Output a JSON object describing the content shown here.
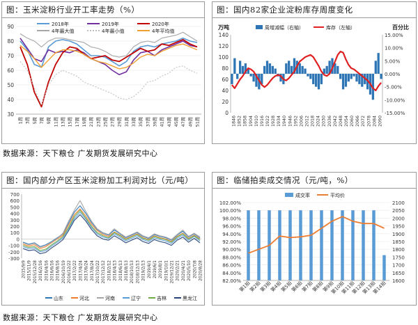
{
  "panels": {
    "p1": {
      "title": "图：玉米淀粉行业开工率走势（%）"
    },
    "p2": {
      "title": "图：国内82家企业淀粉库存周度变化"
    },
    "p3": {
      "title": "图：国内部分产区玉米淀粉加工利润对比（元/吨）"
    },
    "p4": {
      "title": "图：临储拍卖成交情况（元/吨，%）"
    }
  },
  "sources": {
    "row1": "数据来源：天下粮仓  广发期货发展研究中心",
    "row2": "数据来源：天下粮仓  广发期货发展研究中心"
  },
  "chart_data": [
    {
      "id": "p1",
      "type": "line",
      "yticks": [
        "90",
        "80",
        "70",
        "60",
        "50",
        "40",
        "30"
      ],
      "ylim": [
        30,
        90
      ],
      "x": [
        1,
        3,
        5,
        7,
        9,
        11,
        13,
        15,
        17,
        19,
        21,
        23,
        25,
        27,
        29,
        31,
        33,
        35,
        37,
        39,
        41,
        43,
        45,
        47,
        49,
        51
      ],
      "xtick_labels": [
        "1周",
        "3周",
        "5周",
        "7周",
        "9周",
        "11周",
        "13周",
        "15周",
        "17周",
        "19周",
        "21周",
        "23周",
        "25周",
        "27周",
        "29周",
        "31周",
        "33周",
        "35周",
        "37周",
        "39周",
        "41周",
        "43周",
        "45周",
        "47周",
        "49周",
        "51周"
      ],
      "series": [
        {
          "name": "2018年",
          "color": "#5b9bd5",
          "dash": "",
          "width": 1.6,
          "values": [
            80,
            74,
            64,
            62,
            76,
            80,
            81,
            80,
            78,
            74,
            70,
            70,
            69,
            66,
            63,
            66,
            73,
            76,
            77,
            76,
            78,
            79,
            80,
            82,
            80,
            79
          ]
        },
        {
          "name": "2019年",
          "color": "#7030a0",
          "dash": "",
          "width": 1.6,
          "values": [
            82,
            75,
            68,
            66,
            74,
            72,
            73,
            72,
            74,
            72,
            68,
            66,
            64,
            60,
            57,
            59,
            67,
            72,
            73,
            70,
            74,
            76,
            78,
            80,
            77,
            76
          ]
        },
        {
          "name": "2020年",
          "color": "#c00000",
          "dash": "",
          "width": 1.8,
          "values": [
            76,
            64,
            45,
            35,
            52,
            64,
            72,
            76,
            75,
            71,
            68,
            69,
            70,
            67,
            66,
            69,
            72,
            75,
            73,
            74,
            78,
            77,
            79,
            81,
            78,
            76
          ]
        },
        {
          "name": "4年最大值",
          "color": "#a6a6a6",
          "dash": "",
          "width": 1.1,
          "values": [
            85,
            82,
            80,
            76,
            80,
            82,
            82,
            81,
            80,
            79,
            76,
            75,
            73,
            70,
            69,
            70,
            76,
            79,
            80,
            79,
            82,
            83,
            84,
            86,
            83,
            80
          ]
        },
        {
          "name": "4年最小值",
          "color": "#c0c0c0",
          "dash": "2,2",
          "width": 1.1,
          "values": [
            66,
            60,
            48,
            36,
            50,
            57,
            60,
            58,
            56,
            52,
            50,
            48,
            46,
            44,
            41,
            40,
            42,
            46,
            52,
            53,
            56,
            58,
            62,
            63,
            60,
            58
          ]
        },
        {
          "name": "4年平均值",
          "color": "#f0a030",
          "dash": "",
          "width": 1.4,
          "values": [
            77,
            73,
            68,
            62,
            67,
            72,
            74,
            74,
            73,
            71,
            68,
            66,
            65,
            63,
            61,
            62,
            65,
            69,
            71,
            70,
            73,
            75,
            77,
            78,
            76,
            74
          ]
        }
      ]
    },
    {
      "id": "p2",
      "type": "bar+line",
      "left_axis_label": "万吨",
      "right_axis_label": "百分比",
      "left_yticks": [
        "140",
        "120",
        "100",
        "80",
        "60",
        "40",
        "20",
        "0"
      ],
      "left_ylim": [
        0,
        140
      ],
      "right_yticks": [
        "15.00%",
        "10.00%",
        "5.00%",
        "0.00%",
        "-5.00%",
        "-10.00%",
        "-15.00%"
      ],
      "right_ylim": [
        -15,
        15
      ],
      "legend": [
        "周增减幅（右轴）",
        "库存（左轴）"
      ],
      "bar_color": "#2e75b6",
      "line_color": "#e02020",
      "xtick_labels": [
        "1846",
        "1852",
        "1858",
        "1904",
        "1910",
        "1916",
        "1922",
        "1928",
        "1934",
        "1940",
        "1946",
        "1952",
        "2006",
        "2012",
        "2018",
        "2024",
        "2030",
        "2036",
        "2042",
        "2048",
        "2054",
        "2060",
        "2066",
        "2072",
        "2078",
        "2084",
        "2090"
      ],
      "inventory": [
        50,
        44,
        52,
        60,
        66,
        74,
        80,
        78,
        74,
        66,
        58,
        50,
        46,
        50,
        56,
        62,
        66,
        68,
        66,
        60,
        58,
        62,
        68,
        74,
        84,
        92,
        96,
        100,
        102,
        104,
        100,
        92,
        84,
        74,
        68,
        66,
        70,
        80,
        92,
        104,
        110,
        108,
        96,
        86,
        80,
        78,
        74,
        70,
        66,
        62,
        58,
        52,
        44,
        40,
        48,
        54
      ],
      "weekly_change_pct": [
        -4,
        6,
        -2,
        5,
        3,
        4,
        2,
        -1,
        -3,
        -5,
        -6,
        -4,
        3,
        5,
        4,
        3,
        2,
        -1,
        -3,
        -4,
        4,
        5,
        3,
        6,
        5,
        4,
        3,
        2,
        -1,
        -2,
        -4,
        -5,
        -6,
        -4,
        2,
        3,
        5,
        6,
        4,
        3,
        -2,
        -6,
        -5,
        -3,
        -2,
        -1,
        -3,
        -4,
        -5,
        -4,
        -6,
        -8,
        -10,
        5,
        8,
        -2
      ]
    },
    {
      "id": "p3",
      "type": "line",
      "yticks": [
        "700",
        "600",
        "500",
        "400",
        "300",
        "200",
        "100",
        "0",
        "-100",
        "-200",
        "-300"
      ],
      "ylim": [
        -300,
        700
      ],
      "xtick_labels": [
        "2015/9/9",
        "2015/11/9",
        "2015/12/28",
        "2016/2/16",
        "2016/4/16",
        "2016/6/16",
        "2016/8/16",
        "2016/10/19",
        "2016/12/22",
        "2017/2/22",
        "2017/4/24",
        "2017/6/24",
        "2017/8/24",
        "2017/10/22",
        "2017/12/12",
        "2018/2/12",
        "2018/4/13",
        "2018/6/13",
        "2018/8/13",
        "2018/10/13",
        "2018/12/13",
        "2019/2/13",
        "2019/4/1",
        "2019/6/1",
        "2019/8/1",
        "2019/10/1",
        "2019/12/21",
        "2020/2/21",
        "2020/4/21",
        "2020/5/10",
        "2020/7/8",
        "2020/8/28"
      ],
      "legend": [
        "山东",
        "河北",
        "河南",
        "辽宁",
        "吉林",
        "黑龙江"
      ],
      "series": [
        {
          "name": "山东",
          "color": "#2e75b6",
          "values": [
            -50,
            -80,
            -60,
            -120,
            -90,
            -40,
            20,
            80,
            250,
            420,
            520,
            400,
            260,
            150,
            90,
            60,
            140,
            80,
            20,
            60,
            100,
            40,
            10,
            70,
            40,
            20,
            -20,
            60,
            120,
            30,
            80,
            20
          ]
        },
        {
          "name": "河北",
          "color": "#ed7d31",
          "values": [
            -80,
            -110,
            -90,
            -150,
            -120,
            -60,
            0,
            60,
            220,
            380,
            470,
            360,
            230,
            130,
            70,
            40,
            110,
            60,
            0,
            40,
            80,
            20,
            -10,
            50,
            20,
            0,
            -40,
            40,
            90,
            10,
            60,
            0
          ]
        },
        {
          "name": "河南",
          "color": "#a5a5a5",
          "values": [
            -60,
            -90,
            -70,
            -130,
            -100,
            -50,
            10,
            90,
            280,
            450,
            600,
            430,
            280,
            160,
            100,
            70,
            160,
            90,
            30,
            70,
            110,
            50,
            20,
            80,
            50,
            30,
            -10,
            70,
            140,
            40,
            90,
            30
          ]
        },
        {
          "name": "辽宁",
          "color": "#5b9bd5",
          "values": [
            -120,
            -150,
            -140,
            -200,
            -180,
            -110,
            -50,
            20,
            160,
            320,
            420,
            310,
            180,
            80,
            30,
            10,
            80,
            30,
            -30,
            10,
            50,
            -10,
            -40,
            20,
            -10,
            -30,
            -70,
            10,
            60,
            -20,
            40,
            -30
          ]
        },
        {
          "name": "吉林",
          "color": "#70ad47",
          "values": [
            -100,
            -130,
            -120,
            -180,
            -160,
            -90,
            -30,
            40,
            180,
            350,
            450,
            330,
            200,
            100,
            50,
            20,
            100,
            50,
            -10,
            30,
            70,
            10,
            -20,
            40,
            10,
            -10,
            -50,
            30,
            80,
            0,
            50,
            -10
          ]
        },
        {
          "name": "黑龙江",
          "color": "#264478",
          "values": [
            -150,
            -180,
            -170,
            -230,
            -210,
            -140,
            -80,
            -10,
            130,
            290,
            380,
            280,
            150,
            50,
            0,
            -20,
            50,
            0,
            -60,
            -20,
            20,
            -40,
            -70,
            -10,
            -40,
            -60,
            -100,
            -20,
            30,
            -50,
            10,
            -60
          ]
        }
      ]
    },
    {
      "id": "p4",
      "type": "bar+line",
      "categories": [
        "第1拍",
        "第2拍",
        "第3拍",
        "第4拍",
        "第5拍",
        "第6拍",
        "第7拍",
        "第8拍",
        "第9拍",
        "第10拍",
        "第11拍",
        "第12拍",
        "第13拍",
        "第14拍"
      ],
      "legend": [
        "成交率",
        "平均价"
      ],
      "left_yticks": [
        "102.00%",
        "100.00%",
        "98.00%",
        "96.00%",
        "94.00%",
        "92.00%",
        "90.00%",
        "88.00%",
        "86.00%",
        "84.00%",
        "82.00%"
      ],
      "left_ylim": [
        82,
        102
      ],
      "right_yticks": [
        "2100",
        "2050",
        "2000",
        "1950",
        "1900",
        "1850",
        "1800",
        "1750",
        "1700",
        "1650",
        "1600"
      ],
      "right_ylim": [
        1600,
        2100
      ],
      "bar_color": "#5b9bd5",
      "line_color": "#ed7d31",
      "deal_rate_pct": [
        100,
        100,
        100,
        100,
        100,
        100,
        100,
        100,
        100,
        100,
        100,
        100,
        100,
        88.5
      ],
      "avg_price": [
        1775,
        1800,
        1825,
        1885,
        1875,
        1880,
        1890,
        1935,
        1980,
        2010,
        1980,
        1965,
        1965,
        1935
      ]
    }
  ]
}
